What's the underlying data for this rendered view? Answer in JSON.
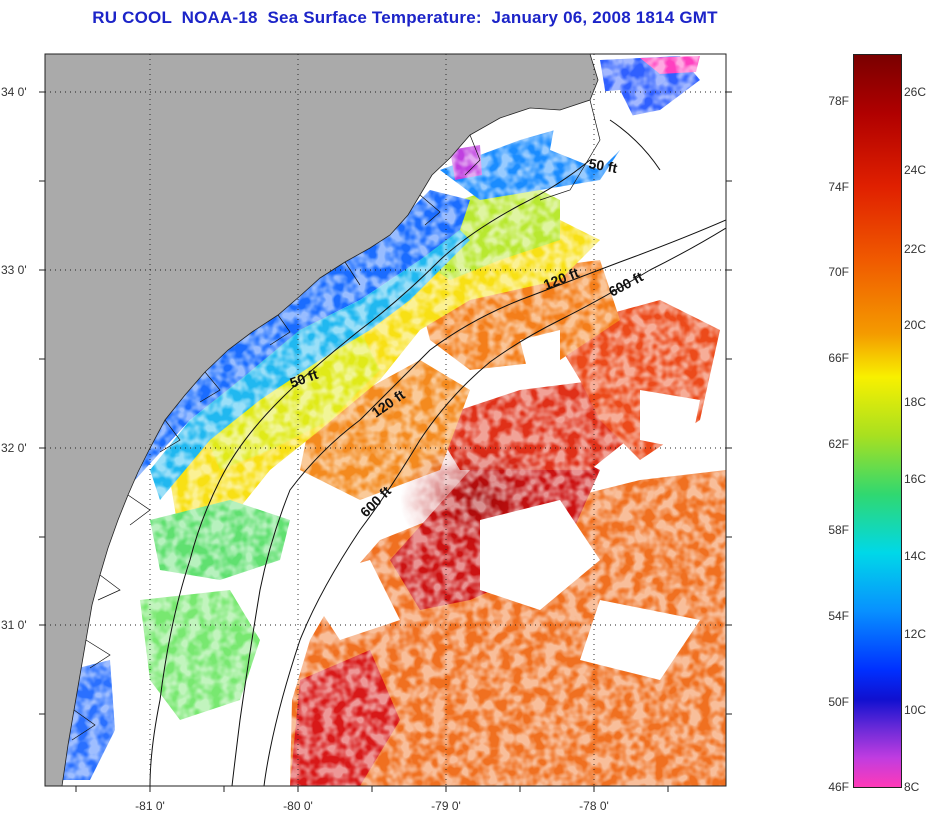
{
  "title": "RU COOL  NOAA-18  Sea Surface Temperature:  January 06, 2008 1814 GMT",
  "map": {
    "lat_labels": [
      "34 0'",
      "33 0'",
      "32 0'",
      "31 0'"
    ],
    "lon_labels": [
      "-81 0'",
      "-80 0'",
      "-79 0'",
      "-78 0'"
    ],
    "isobaths": [
      {
        "label": "50 ft",
        "depth_ft": 50
      },
      {
        "label": "120 ft",
        "depth_ft": 120
      },
      {
        "label": "600 ft",
        "depth_ft": 600
      }
    ],
    "colors": {
      "land": "#aaaaaa",
      "cloud": "#ffffff",
      "title": "#1c24c8"
    }
  },
  "colorbar": {
    "fahrenheit": [
      "78F",
      "74F",
      "70F",
      "66F",
      "62F",
      "58F",
      "54F",
      "50F",
      "46F"
    ],
    "celsius": [
      "26C",
      "24C",
      "22C",
      "20C",
      "18C",
      "16C",
      "14C",
      "12C",
      "10C",
      "8C"
    ]
  }
}
